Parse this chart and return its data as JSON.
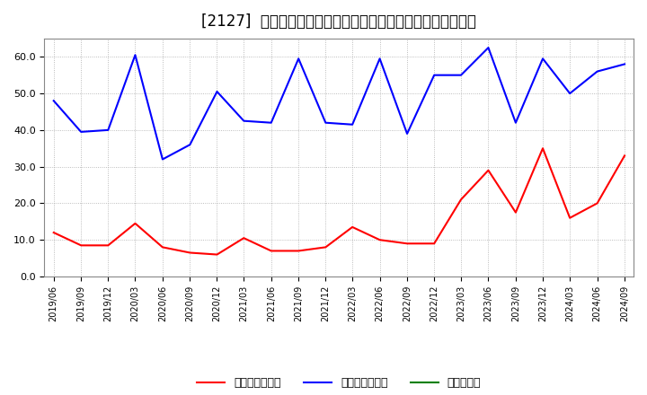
{
  "title": "[2127]  売上債権回転率、買入債務回転率、在庫回転率の推移",
  "dates": [
    "2019/06",
    "2019/09",
    "2019/12",
    "2020/03",
    "2020/06",
    "2020/09",
    "2020/12",
    "2021/03",
    "2021/06",
    "2021/09",
    "2021/12",
    "2022/03",
    "2022/06",
    "2022/09",
    "2022/12",
    "2023/03",
    "2023/06",
    "2023/09",
    "2023/12",
    "2024/03",
    "2024/06",
    "2024/09"
  ],
  "receivables_turnover": [
    12.0,
    8.5,
    8.5,
    14.5,
    8.0,
    6.5,
    6.0,
    10.5,
    7.0,
    7.0,
    8.0,
    13.5,
    10.0,
    9.0,
    9.0,
    21.0,
    29.0,
    17.5,
    35.0,
    16.0,
    20.0,
    33.0
  ],
  "payables_turnover": [
    48.0,
    39.5,
    40.0,
    60.5,
    32.0,
    36.0,
    50.5,
    42.5,
    42.0,
    59.5,
    42.0,
    41.5,
    59.5,
    39.0,
    55.0,
    55.0,
    62.5,
    42.0,
    59.5,
    50.0,
    56.0,
    58.0
  ],
  "inventory_turnover": [
    null,
    null,
    null,
    null,
    null,
    null,
    null,
    null,
    null,
    null,
    null,
    null,
    null,
    null,
    null,
    null,
    null,
    null,
    null,
    null,
    null,
    null
  ],
  "receivables_color": "#ff0000",
  "payables_color": "#0000ff",
  "inventory_color": "#008000",
  "background_color": "#ffffff",
  "plot_bg_color": "#ffffff",
  "grid_color": "#aaaaaa",
  "ylim": [
    0.0,
    65.0
  ],
  "yticks": [
    0.0,
    10.0,
    20.0,
    30.0,
    40.0,
    50.0,
    60.0
  ],
  "legend_labels": [
    "売上債権回転率",
    "買入債務回転率",
    "在庫回転率"
  ],
  "title_fontsize": 12,
  "tick_fontsize": 8,
  "legend_fontsize": 9
}
